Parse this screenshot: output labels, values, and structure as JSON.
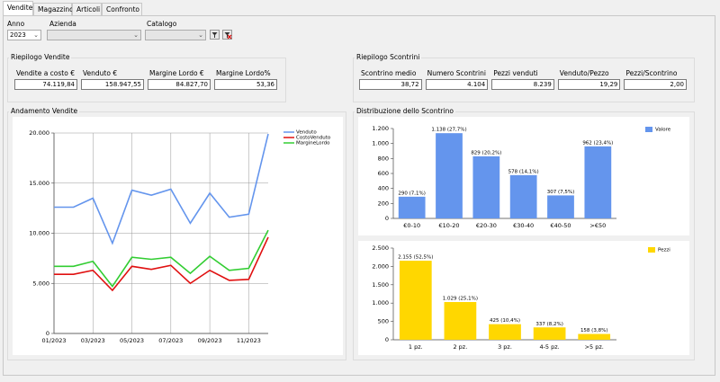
{
  "tabs": [
    "Vendite",
    "Magazzino",
    "Articoli",
    "Confronto Anni"
  ],
  "filters": {
    "anno_label": "Anno",
    "anno_value": "2023",
    "azienda_label": "Azienda",
    "catalogo_label": "Catalogo"
  },
  "riepilogo_vendite": {
    "title": "Riepilogo Vendite",
    "fields": [
      {
        "label": "Vendite a costo €",
        "value": "74.119,84"
      },
      {
        "label": "Venduto €",
        "value": "158.947,55"
      },
      {
        "label": "Margine Lordo €",
        "value": "84.827,70"
      },
      {
        "label": "Margine Lordo%",
        "value": "53,36"
      }
    ]
  },
  "riepilogo_scontrini": {
    "title": "Riepilogo Scontrini",
    "fields": [
      {
        "label": "Scontrino medio",
        "value": "38,72"
      },
      {
        "label": "Numero Scontrini",
        "value": "4.104"
      },
      {
        "label": "Pezzi venduti",
        "value": "8.239"
      },
      {
        "label": "Venduto/Pezzo",
        "value": "19,29"
      },
      {
        "label": "Pezzi/Scontrino",
        "value": "2,00"
      }
    ]
  },
  "andamento_title": "Andamento Vendite",
  "distribuzione_title": "Distribuzione dello Scontrino",
  "chart_data": [
    {
      "type": "line",
      "categories": [
        "01/2023",
        null,
        "03/2023",
        null,
        "05/2023",
        null,
        "07/2023",
        null,
        "09/2023",
        null,
        "11/2023",
        null
      ],
      "series": [
        {
          "name": "Venduto",
          "color": "#6495ed",
          "values": [
            12600,
            12600,
            13500,
            9000,
            14300,
            13800,
            14400,
            11000,
            14000,
            11600,
            11900,
            19900
          ]
        },
        {
          "name": "CostoVenduto",
          "color": "#e01010",
          "values": [
            5900,
            5900,
            6300,
            4300,
            6700,
            6400,
            6800,
            5000,
            6300,
            5300,
            5400,
            9600
          ]
        },
        {
          "name": "MargineLordo",
          "color": "#32cd32",
          "values": [
            6700,
            6700,
            7200,
            4700,
            7600,
            7400,
            7600,
            6000,
            7700,
            6300,
            6500,
            10300
          ]
        }
      ],
      "ylim": [
        0,
        20000
      ],
      "yticks": [
        0,
        {
          "value": 5000,
          "label": "5.000"
        },
        {
          "value": 10000,
          "label": "10.000"
        },
        {
          "value": 15000,
          "label": "15.000"
        },
        {
          "value": 20000,
          "label": "20.000"
        }
      ],
      "grid": true,
      "legend": "top-right"
    },
    {
      "type": "bar",
      "categories": [
        "€0-10",
        "€10-20",
        "€20-30",
        "€30-40",
        "€40-50",
        ">€50"
      ],
      "series": [
        {
          "name": "Valore",
          "color": "#6495ed",
          "values": [
            290,
            1138,
            829,
            578,
            307,
            962
          ],
          "value_labels": [
            "290 (7,1%)",
            "1.138 (27,7%)",
            "829 (20,2%)",
            "578 (14,1%)",
            "307 (7,5%)",
            "962 (23,4%)"
          ]
        }
      ],
      "ylim": [
        0,
        1200
      ],
      "yticks": [
        0,
        200,
        400,
        600,
        800,
        {
          "value": 1000,
          "label": "1.000"
        },
        {
          "value": 1200,
          "label": "1.200"
        }
      ],
      "grid": false,
      "legend": "top-right"
    },
    {
      "type": "bar",
      "categories": [
        "1 pz.",
        "2 pz.",
        "3 pz.",
        "4-5 pz.",
        ">5 pz."
      ],
      "series": [
        {
          "name": "Pezzi",
          "color": "#ffd700",
          "values": [
            2155,
            1029,
            425,
            337,
            158
          ],
          "value_labels": [
            "2.155 (52,5%)",
            "1.029 (25,1%)",
            "425 (10,4%)",
            "337 (8,2%)",
            "158 (3,8%)"
          ]
        }
      ],
      "ylim": [
        0,
        2500
      ],
      "yticks": [
        0,
        {
          "value": 500,
          "label": "500"
        },
        {
          "value": 1000,
          "label": "1.000"
        },
        {
          "value": 1500,
          "label": "1.500"
        },
        {
          "value": 2000,
          "label": "2.000"
        },
        {
          "value": 2500,
          "label": "2.500"
        }
      ],
      "grid": false,
      "legend": "top-right"
    }
  ]
}
